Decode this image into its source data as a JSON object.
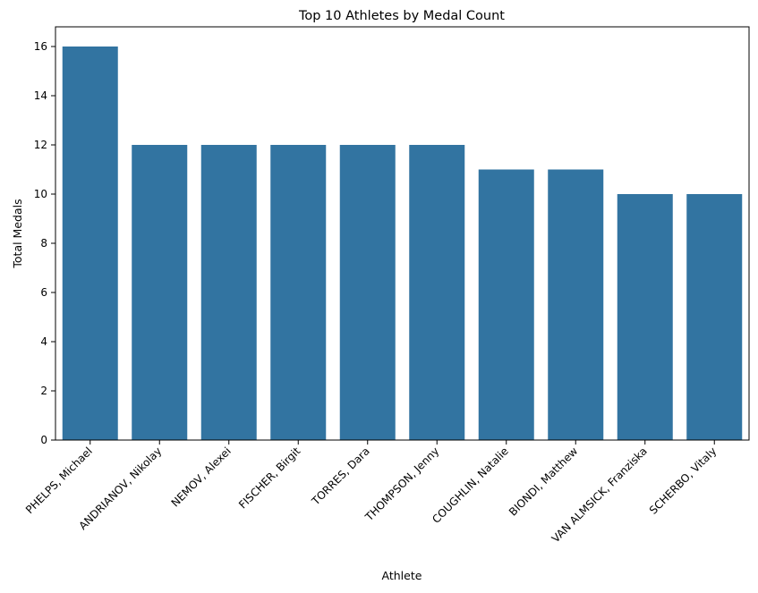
{
  "chart_data": {
    "type": "bar",
    "title": "Top 10 Athletes by Medal Count",
    "xlabel": "Athlete",
    "ylabel": "Total Medals",
    "categories": [
      "PHELPS, Michael",
      "ANDRIANOV, Nikolay",
      "NEMOV, Alexei",
      "FISCHER, Birgit",
      "TORRES, Dara",
      "THOMPSON, Jenny",
      "COUGHLIN, Natalie",
      "BIONDI, Matthew",
      "VAN ALMSICK, Franziska",
      "SCHERBO, Vitaly"
    ],
    "values": [
      16,
      12,
      12,
      12,
      12,
      12,
      11,
      11,
      10,
      10
    ],
    "ylim": [
      0,
      16.8
    ],
    "yticks": [
      0,
      2,
      4,
      6,
      8,
      10,
      12,
      14,
      16
    ],
    "grid": false,
    "bar_color": "#3274a1"
  }
}
